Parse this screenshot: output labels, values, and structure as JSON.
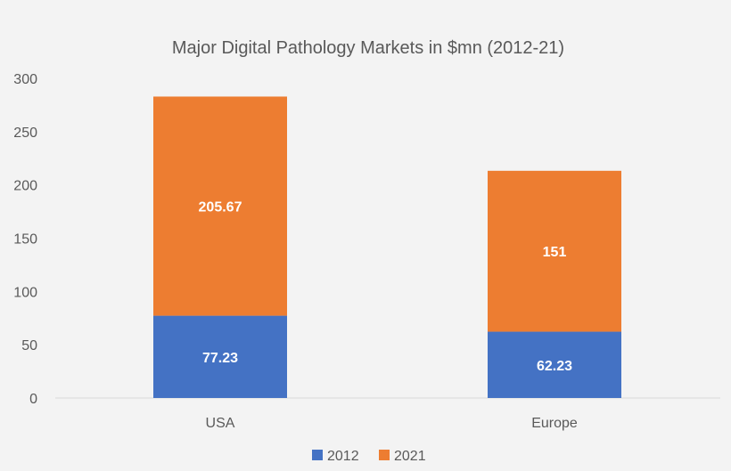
{
  "chart_data": {
    "type": "bar",
    "stacked": true,
    "title": "Major Digital Pathology Markets in $mn (2012-21)",
    "categories": [
      "USA",
      "Europe"
    ],
    "series": [
      {
        "name": "2012",
        "values": [
          77.23,
          62.23
        ],
        "labels": [
          "77.23",
          "62.23"
        ],
        "color": "#4472c4"
      },
      {
        "name": "2021",
        "values": [
          205.67,
          151
        ],
        "labels": [
          "205.67",
          "151"
        ],
        "color": "#ed7d31"
      }
    ],
    "yticks": [
      "0",
      "50",
      "100",
      "150",
      "200",
      "250",
      "300"
    ],
    "ylim": [
      0,
      300
    ],
    "grid": false,
    "legend": "bottom"
  }
}
